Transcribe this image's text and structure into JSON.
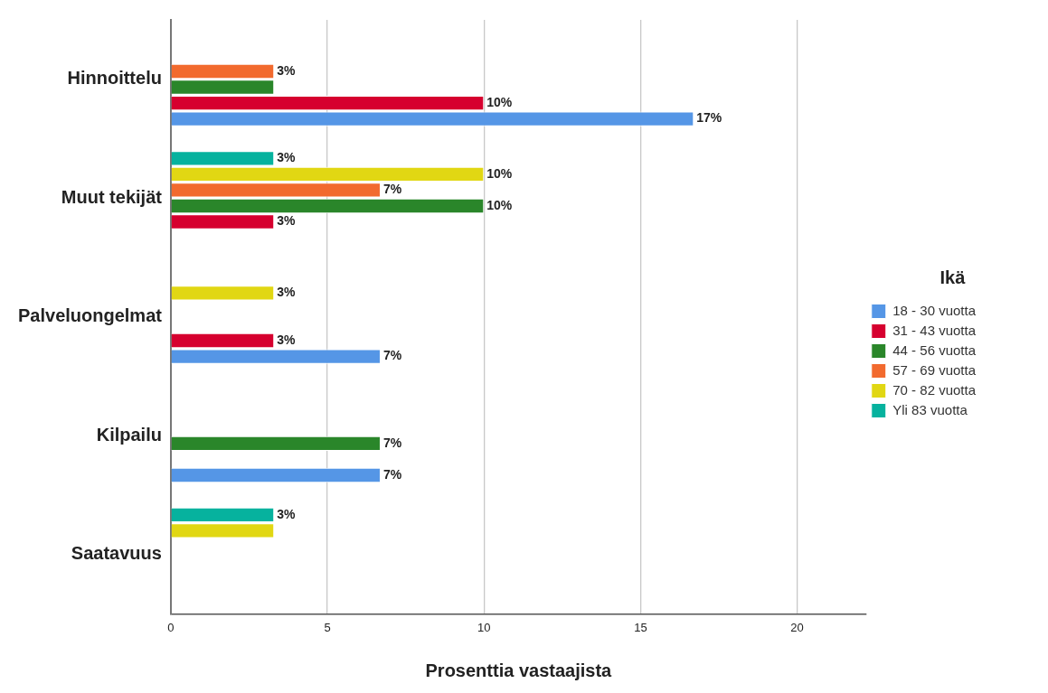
{
  "chart_data": {
    "type": "bar",
    "orientation": "horizontal",
    "xlabel": "Prosenttia vastaajista",
    "legend_title": "Ikä",
    "categories": [
      "Hinnoittelu",
      "Muut tekijät",
      "Palveluongelmat",
      "Kilpailu",
      "Saatavuus"
    ],
    "series": [
      {
        "name": "18 - 30 vuotta",
        "color": "#5596e6",
        "values": [
          16.7,
          null,
          6.7,
          6.7,
          null
        ],
        "value_labels": [
          "17%",
          null,
          "7%",
          "7%",
          null
        ]
      },
      {
        "name": "31 - 43 vuotta",
        "color": "#d6002f",
        "values": [
          10,
          3.3,
          3.3,
          null,
          null
        ],
        "value_labels": [
          "10%",
          "3%",
          "3%",
          null,
          null
        ]
      },
      {
        "name": "44 - 56 vuotta",
        "color": "#2a862a",
        "values": [
          3.3,
          10,
          null,
          6.7,
          null
        ],
        "value_labels": [
          null,
          "10%",
          null,
          "7%",
          null
        ]
      },
      {
        "name": "57 - 69 vuotta",
        "color": "#f26a2e",
        "values": [
          3.3,
          6.7,
          null,
          null,
          null
        ],
        "value_labels": [
          "3%",
          "7%",
          null,
          null,
          null
        ]
      },
      {
        "name": "70 - 82 vuotta",
        "color": "#e1d713",
        "values": [
          null,
          10,
          3.3,
          null,
          3.3
        ],
        "value_labels": [
          null,
          "10%",
          "3%",
          null,
          null
        ]
      },
      {
        "name": "Yli 83 vuotta",
        "color": "#06b29e",
        "values": [
          null,
          3.3,
          null,
          null,
          3.3
        ],
        "value_labels": [
          null,
          "3%",
          null,
          null,
          "3%"
        ]
      }
    ],
    "xlim": [
      0,
      22.2
    ],
    "xticks": [
      0,
      5,
      10,
      15,
      20
    ],
    "grid": "x",
    "legend": "right"
  }
}
